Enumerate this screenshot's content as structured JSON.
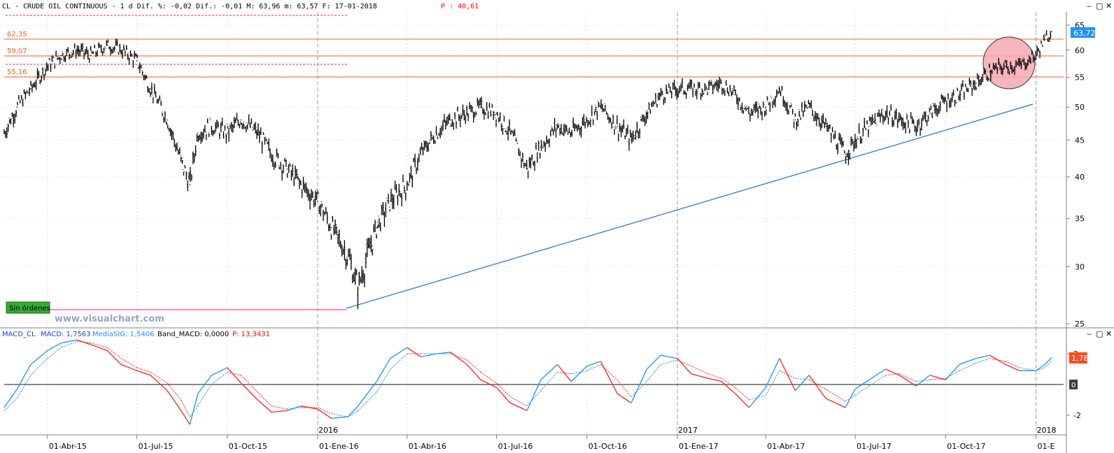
{
  "header": {
    "prefix": "CL - CRUDE OIL CONTINUOUS -  1 d Dif. %: -0,02 Dif.: -0,01 M: 63,96 m: 63,57 F: 17-01-2018",
    "p_label": "P : 40,61"
  },
  "colors": {
    "price_bars": "#000000",
    "level_lines": "#ff5a1f",
    "level_text": "#ff5a1f",
    "dotted_magenta": "#ff1493",
    "trendline": "#1f6fd6",
    "macd_line": "#1e90ff",
    "signal_line": "#ff2020",
    "badge_blue": "#1e90ff",
    "badge_red": "#ff4a1a",
    "badge_green": "#33aa33",
    "highlight_fill": "#f4a9b1"
  },
  "price_panel": {
    "levels": [
      "62,35",
      "59,07",
      "55,16"
    ],
    "current_price_badge": "63,72",
    "no_orders_badge": "Sin órdenes",
    "watermark": "www.visualchart.com",
    "highlight_circle": "pink ellipse around late-2017 consolidation",
    "y_ticks": [
      "65",
      "60",
      "55",
      "50",
      "45",
      "40",
      "35",
      "30",
      "25"
    ]
  },
  "macd_panel": {
    "name": "MACD_CL",
    "macd_label": "MACD: 1,7563",
    "signal_label": "MediaSIG: 1,5406",
    "band_label": "Band_MACD: 0,0000",
    "p_label": "P: 13,3431",
    "value_badge": "1,76",
    "zero_badge": "0",
    "y_ticks": [
      "2",
      "-2"
    ]
  },
  "x_axis": {
    "year_labels": [
      "2016",
      "2017",
      "2018"
    ],
    "month_labels": [
      "01-Abr-15",
      "01-Jul-15",
      "01-Oct-15",
      "01-Ene-16",
      "01-Abr-16",
      "01-Jul-16",
      "01-Oct-16",
      "01-Ene-17",
      "01-Abr-17",
      "01-Jul-17",
      "01-Oct-17",
      "01-E"
    ]
  },
  "chart_data": [
    {
      "type": "line",
      "title": "CL - CRUDE OIL CONTINUOUS",
      "x": [
        "2015-02-16",
        "2015-03-01",
        "2015-03-15",
        "2015-04-01",
        "2015-04-15",
        "2015-05-01",
        "2015-05-15",
        "2015-06-01",
        "2015-06-15",
        "2015-07-01",
        "2015-07-15",
        "2015-08-01",
        "2015-08-15",
        "2015-08-24",
        "2015-09-01",
        "2015-09-15",
        "2015-10-01",
        "2015-10-15",
        "2015-11-01",
        "2015-11-15",
        "2015-12-01",
        "2015-12-15",
        "2016-01-01",
        "2016-01-15",
        "2016-02-01",
        "2016-02-11",
        "2016-03-01",
        "2016-03-15",
        "2016-04-01",
        "2016-04-15",
        "2016-05-01",
        "2016-05-15",
        "2016-06-01",
        "2016-06-15",
        "2016-07-01",
        "2016-07-15",
        "2016-08-01",
        "2016-08-15",
        "2016-09-01",
        "2016-09-15",
        "2016-10-01",
        "2016-10-15",
        "2016-11-01",
        "2016-11-15",
        "2016-12-01",
        "2016-12-15",
        "2017-01-01",
        "2017-01-15",
        "2017-02-01",
        "2017-02-15",
        "2017-03-01",
        "2017-03-15",
        "2017-04-01",
        "2017-04-15",
        "2017-05-01",
        "2017-05-15",
        "2017-06-01",
        "2017-06-21",
        "2017-07-01",
        "2017-07-15",
        "2017-08-01",
        "2017-08-15",
        "2017-09-01",
        "2017-09-15",
        "2017-10-01",
        "2017-10-15",
        "2017-11-01",
        "2017-11-15",
        "2017-12-01",
        "2017-12-15",
        "2018-01-01",
        "2018-01-10",
        "2018-01-17"
      ],
      "series": [
        {
          "values": [
            46,
            50,
            53,
            57,
            59,
            60,
            59,
            61,
            60,
            58,
            53,
            48,
            42,
            39,
            46,
            47,
            46,
            48,
            46,
            43,
            41,
            39,
            37,
            34,
            31,
            28,
            34,
            37,
            39,
            43,
            46,
            48,
            49,
            50,
            49,
            46,
            41,
            44,
            47,
            46,
            48,
            50,
            47,
            45,
            49,
            52,
            53,
            53,
            53,
            54,
            52,
            49,
            50,
            53,
            48,
            50,
            47,
            43,
            45,
            47,
            49,
            48,
            47,
            49,
            51,
            52,
            54,
            56,
            57,
            57,
            59,
            62,
            63.7
          ]
        }
      ],
      "ylim": [
        25,
        66
      ]
    },
    {
      "type": "line",
      "title": "MACD_CL",
      "x": [
        "2015-02-16",
        "2015-03-01",
        "2015-03-15",
        "2015-04-01",
        "2015-04-15",
        "2015-05-01",
        "2015-05-15",
        "2015-06-01",
        "2015-06-15",
        "2015-07-01",
        "2015-07-15",
        "2015-08-01",
        "2015-08-15",
        "2015-08-24",
        "2015-09-01",
        "2015-09-15",
        "2015-10-01",
        "2015-10-15",
        "2015-11-01",
        "2015-11-15",
        "2015-12-01",
        "2015-12-15",
        "2016-01-01",
        "2016-01-15",
        "2016-02-01",
        "2016-02-11",
        "2016-03-01",
        "2016-03-15",
        "2016-04-01",
        "2016-04-15",
        "2016-05-01",
        "2016-05-15",
        "2016-06-01",
        "2016-06-15",
        "2016-07-01",
        "2016-07-15",
        "2016-08-01",
        "2016-08-15",
        "2016-09-01",
        "2016-09-15",
        "2016-10-01",
        "2016-10-15",
        "2016-11-01",
        "2016-11-15",
        "2016-12-01",
        "2016-12-15",
        "2017-01-01",
        "2017-01-15",
        "2017-02-01",
        "2017-02-15",
        "2017-03-01",
        "2017-03-15",
        "2017-04-01",
        "2017-04-15",
        "2017-05-01",
        "2017-05-15",
        "2017-06-01",
        "2017-06-21",
        "2017-07-01",
        "2017-07-15",
        "2017-08-01",
        "2017-08-15",
        "2017-09-01",
        "2017-09-15",
        "2017-10-01",
        "2017-10-15",
        "2017-11-01",
        "2017-11-15",
        "2017-12-01",
        "2017-12-15",
        "2018-01-01",
        "2018-01-10",
        "2018-01-17"
      ],
      "series": [
        {
          "name": "MACD",
          "values": [
            -1.5,
            -0.3,
            1.3,
            2.2,
            2.7,
            2.9,
            2.6,
            2.2,
            1.3,
            0.9,
            0.6,
            -0.4,
            -1.7,
            -2.6,
            -0.6,
            0.6,
            1.1,
            0.1,
            -1.0,
            -1.8,
            -1.7,
            -1.4,
            -1.6,
            -2.2,
            -2.1,
            -1.4,
            0.2,
            1.7,
            2.4,
            1.8,
            2.0,
            2.1,
            1.3,
            0.3,
            -0.2,
            -1.2,
            -1.7,
            0.3,
            1.3,
            0.2,
            1.2,
            1.5,
            -0.6,
            -1.2,
            1.0,
            1.9,
            1.7,
            0.7,
            0.4,
            0.2,
            -0.6,
            -1.5,
            -0.2,
            1.7,
            -0.4,
            0.6,
            -0.9,
            -1.5,
            -0.3,
            0.3,
            1.0,
            0.6,
            -0.1,
            0.6,
            0.3,
            1.3,
            1.7,
            1.9,
            1.3,
            0.9,
            0.9,
            1.3,
            1.76
          ]
        },
        {
          "name": "MediaSIG",
          "values": [
            -1.7,
            -0.9,
            0.6,
            1.7,
            2.4,
            2.8,
            2.7,
            2.4,
            1.7,
            1.1,
            0.8,
            0.1,
            -1.0,
            -2.1,
            -1.4,
            0.0,
            0.8,
            0.6,
            -0.5,
            -1.4,
            -1.6,
            -1.5,
            -1.5,
            -1.9,
            -2.1,
            -1.7,
            -0.5,
            1.0,
            2.0,
            2.0,
            2.0,
            2.0,
            1.6,
            0.8,
            0.1,
            -0.8,
            -1.4,
            -0.4,
            0.8,
            0.7,
            0.9,
            1.3,
            0.3,
            -0.8,
            0.2,
            1.3,
            1.6,
            1.2,
            0.7,
            0.4,
            -0.2,
            -1.0,
            -0.7,
            0.9,
            0.4,
            0.3,
            -0.3,
            -1.1,
            -0.7,
            -0.1,
            0.6,
            0.7,
            0.2,
            0.3,
            0.4,
            0.9,
            1.4,
            1.7,
            1.5,
            1.1,
            0.9,
            1.1,
            1.54
          ]
        }
      ],
      "ylim": [
        -3,
        3.3
      ]
    }
  ]
}
